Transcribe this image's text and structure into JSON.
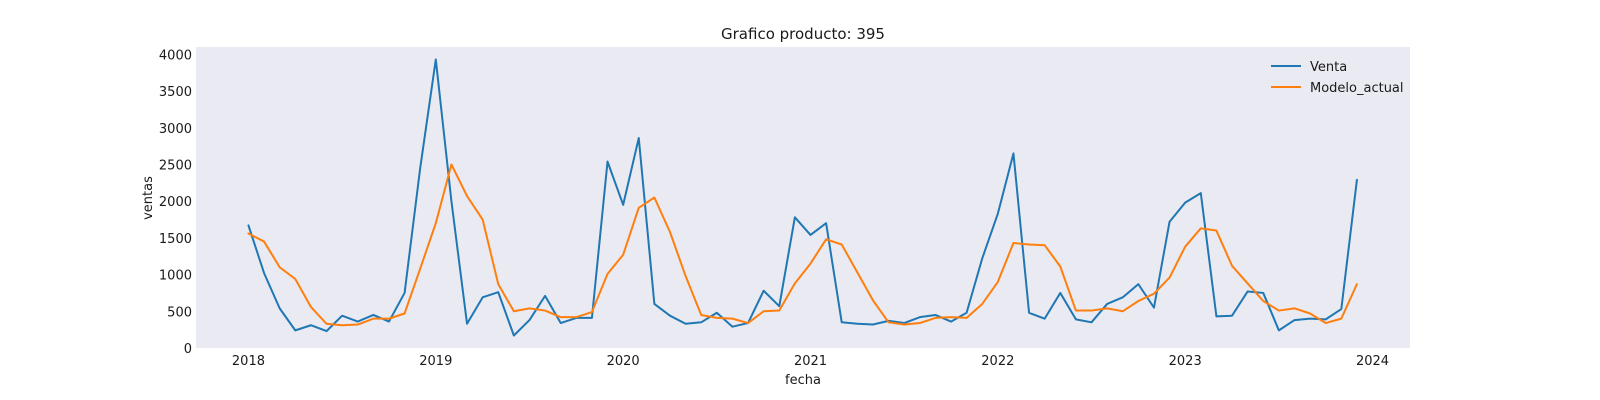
{
  "chart_data": {
    "type": "line",
    "title": "Grafico producto: 395",
    "xlabel": "fecha",
    "ylabel": "ventas",
    "xlim": [
      2017.72,
      2024.2
    ],
    "ylim": [
      0,
      4100
    ],
    "x_ticks": [
      2018,
      2019,
      2020,
      2021,
      2022,
      2023,
      2024
    ],
    "x_tick_labels": [
      "2018",
      "2019",
      "2020",
      "2021",
      "2022",
      "2023",
      "2024"
    ],
    "y_ticks": [
      0,
      500,
      1000,
      1500,
      2000,
      2500,
      3000,
      3500,
      4000
    ],
    "y_tick_labels": [
      "0",
      "500",
      "1000",
      "1500",
      "2000",
      "2500",
      "3000",
      "3500",
      "4000"
    ],
    "grid": false,
    "legend_position": "top-right",
    "x_start": 2018,
    "x_step": 0.0833333,
    "series": [
      {
        "name": "Venta",
        "color": "#1f77b4",
        "values": [
          1670,
          1020,
          540,
          240,
          310,
          230,
          440,
          360,
          450,
          360,
          750,
          2450,
          3930,
          2000,
          330,
          690,
          760,
          170,
          380,
          710,
          340,
          410,
          410,
          2540,
          1950,
          2860,
          600,
          440,
          330,
          350,
          480,
          290,
          340,
          780,
          570,
          1780,
          1540,
          1700,
          350,
          330,
          320,
          370,
          340,
          420,
          450,
          360,
          480,
          1220,
          1830,
          2650,
          480,
          400,
          750,
          390,
          350,
          600,
          690,
          870,
          550,
          1720,
          1980,
          2110,
          430,
          440,
          770,
          750,
          240,
          380,
          400,
          390,
          530,
          2290
        ]
      },
      {
        "name": "Modelo_actual",
        "color": "#ff7f0e",
        "values": [
          1560,
          1450,
          1100,
          940,
          560,
          330,
          310,
          320,
          400,
          400,
          470,
          1080,
          1700,
          2500,
          2070,
          1750,
          870,
          500,
          540,
          510,
          420,
          420,
          490,
          1010,
          1270,
          1910,
          2050,
          1580,
          980,
          450,
          410,
          400,
          340,
          500,
          510,
          880,
          1150,
          1480,
          1410,
          1030,
          650,
          350,
          320,
          340,
          410,
          420,
          410,
          600,
          900,
          1430,
          1410,
          1400,
          1110,
          510,
          510,
          540,
          500,
          640,
          740,
          960,
          1380,
          1630,
          1600,
          1120,
          880,
          640,
          510,
          540,
          470,
          340,
          400,
          870
        ]
      }
    ]
  }
}
